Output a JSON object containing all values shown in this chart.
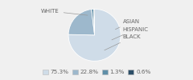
{
  "labels": [
    "WHITE",
    "HISPANIC",
    "ASIAN",
    "BLACK"
  ],
  "values": [
    75.3,
    22.8,
    1.3,
    0.6
  ],
  "colors": [
    "#cfdce8",
    "#9db8cc",
    "#5f8fa8",
    "#2d4f68"
  ],
  "legend_labels": [
    "75.3%",
    "22.8%",
    "1.3%",
    "0.6%"
  ],
  "background_color": "#f0f0f0",
  "label_fontsize": 5.0,
  "legend_fontsize": 5.2,
  "startangle": 90
}
